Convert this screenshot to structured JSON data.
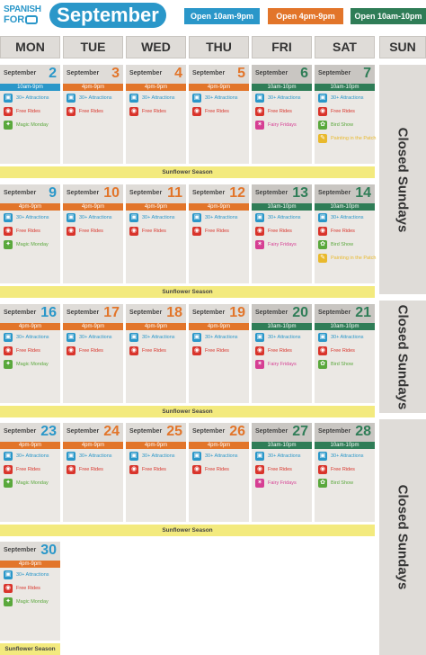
{
  "header": {
    "logo_line1": "SPANISH",
    "logo_line2": "FOR",
    "month": "September",
    "hours_badges": [
      "Open 10am-9pm",
      "Open 4pm-9pm",
      "Open 10am-10pm"
    ]
  },
  "day_headers": [
    "MON",
    "TUE",
    "WED",
    "THU",
    "FRI",
    "SAT",
    "SUN"
  ],
  "closed_label": "Closed Sundays",
  "month_label": "September",
  "sunflower_label": "Sunflower Season",
  "events": {
    "attractions": "30+ Attractions",
    "rides": "Free Rides",
    "magic": "Magic Monday",
    "fairy": "Fairy Fridays",
    "bird": "Bird Show",
    "painting": "Painting in the Patch"
  },
  "hours_text": {
    "blue": "10am-9pm",
    "orange": "4pm-9pm",
    "green": "10am-10pm"
  },
  "weeks": [
    [
      {
        "day": "2",
        "type": "monday"
      },
      {
        "day": "3",
        "type": "weekday"
      },
      {
        "day": "4",
        "type": "weekday"
      },
      {
        "day": "5",
        "type": "weekday"
      },
      {
        "day": "6",
        "type": "friday"
      },
      {
        "day": "7",
        "type": "saturday"
      }
    ],
    [
      {
        "day": "9",
        "type": "monday"
      },
      {
        "day": "10",
        "type": "weekday"
      },
      {
        "day": "11",
        "type": "weekday"
      },
      {
        "day": "12",
        "type": "weekday"
      },
      {
        "day": "13",
        "type": "friday"
      },
      {
        "day": "14",
        "type": "saturday"
      }
    ],
    [
      {
        "day": "16",
        "type": "monday"
      },
      {
        "day": "17",
        "type": "weekday"
      },
      {
        "day": "18",
        "type": "weekday"
      },
      {
        "day": "19",
        "type": "weekday"
      },
      {
        "day": "20",
        "type": "friday"
      },
      {
        "day": "21",
        "type": "saturday"
      }
    ],
    [
      {
        "day": "23",
        "type": "monday"
      },
      {
        "day": "24",
        "type": "weekday"
      },
      {
        "day": "25",
        "type": "weekday"
      },
      {
        "day": "26",
        "type": "weekday"
      },
      {
        "day": "27",
        "type": "friday"
      },
      {
        "day": "28",
        "type": "saturday"
      }
    ],
    [
      {
        "day": "30",
        "type": "monday"
      }
    ]
  ],
  "colors": {
    "blue": "#2a97c9",
    "orange": "#e2752a",
    "green": "#2f7d57",
    "red": "#d9342b",
    "sunflower": "#f3ea7e"
  }
}
